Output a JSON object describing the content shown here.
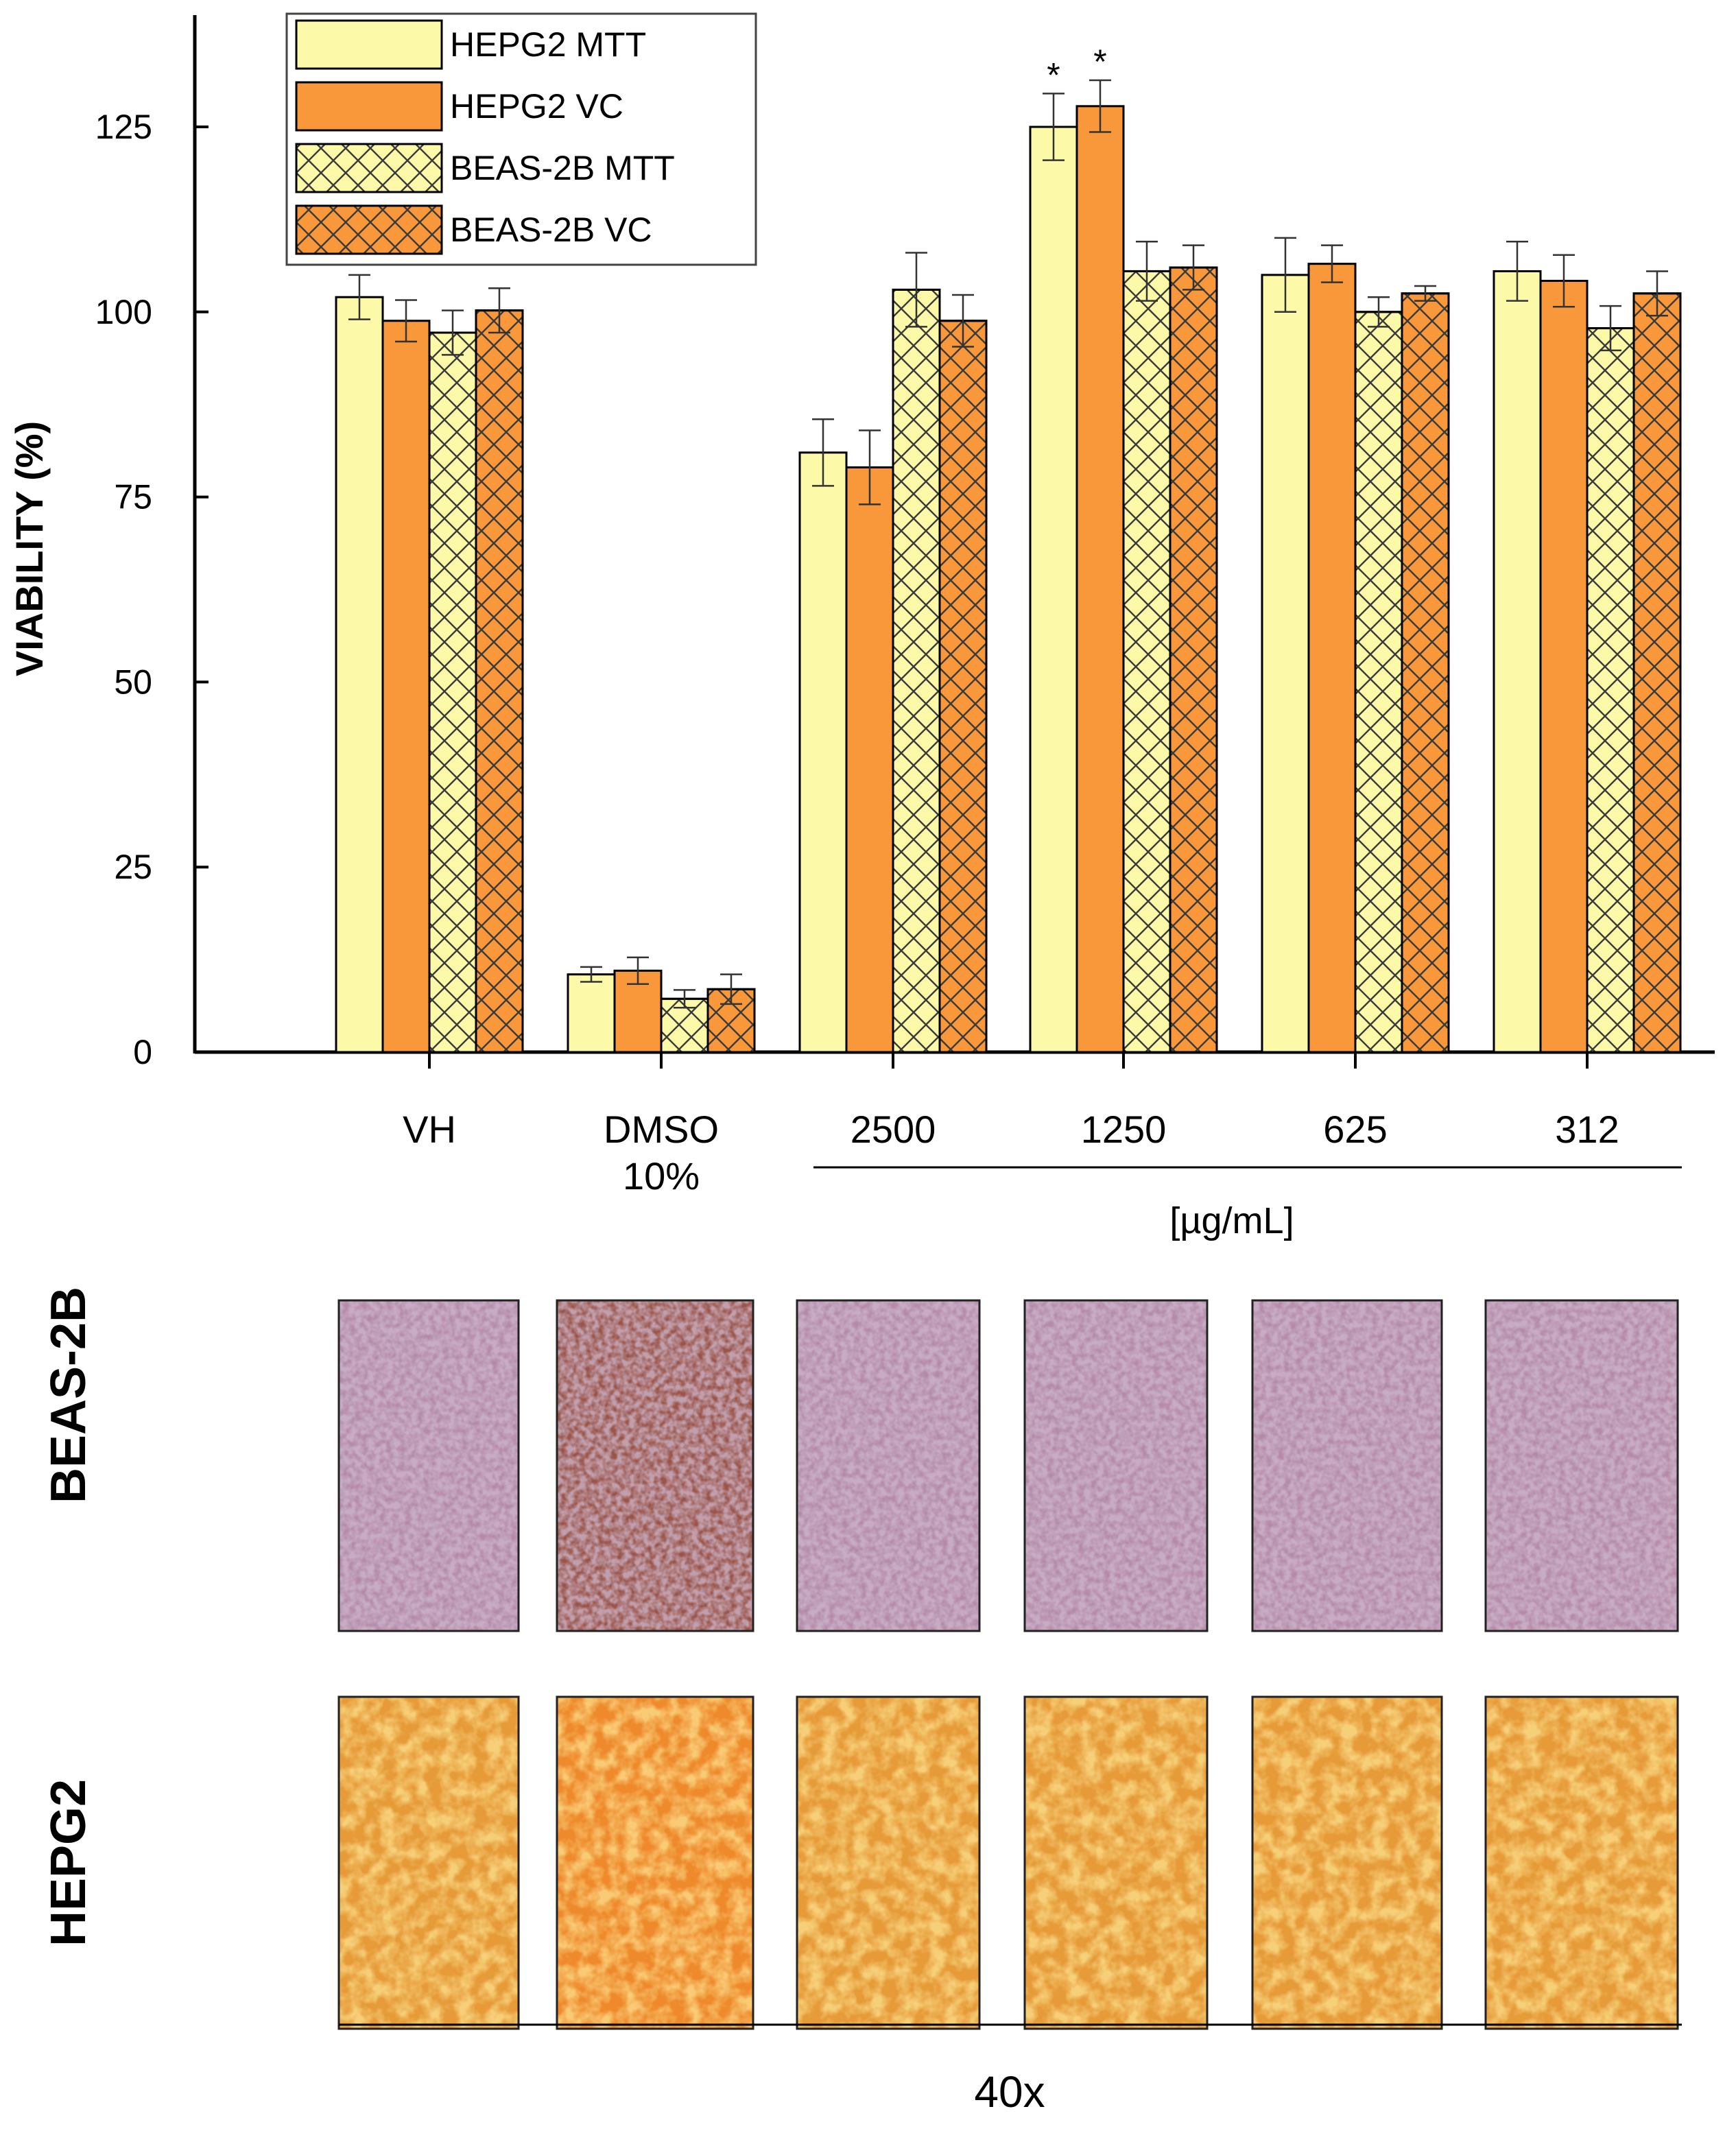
{
  "chart_data": {
    "type": "bar",
    "ylabel": "VIABILITY (%)",
    "ylim": [
      0,
      140
    ],
    "yticks": [
      0,
      25,
      50,
      75,
      100,
      125
    ],
    "categories": [
      [
        "VH"
      ],
      [
        "DMSO",
        "10%"
      ],
      [
        "2500"
      ],
      [
        "1250"
      ],
      [
        "625"
      ],
      [
        "312"
      ]
    ],
    "concentration_unit": "[µg/mL]",
    "series": [
      {
        "name": "HEPG2 MTT",
        "values": [
          102,
          10.5,
          81,
          125,
          105,
          105.5
        ],
        "errors": [
          3,
          1,
          4.5,
          4.5,
          5,
          4
        ]
      },
      {
        "name": "HEPG2 VC",
        "values": [
          98.8,
          11,
          79,
          127.8,
          106.5,
          104.2
        ],
        "errors": [
          2.8,
          1.8,
          5,
          3.5,
          2.5,
          3.5
        ]
      },
      {
        "name": "BEAS-2B MTT",
        "values": [
          97.2,
          7.2,
          103,
          105.5,
          100,
          97.8
        ],
        "errors": [
          3,
          1.2,
          5,
          4,
          2,
          3
        ]
      },
      {
        "name": "BEAS-2B VC",
        "values": [
          100.2,
          8.5,
          98.8,
          106,
          102.5,
          102.5
        ],
        "errors": [
          3,
          2,
          3.5,
          3,
          1,
          3
        ]
      }
    ],
    "significance": [
      {
        "category": "1250",
        "series": "HEPG2 MTT",
        "mark": "*"
      },
      {
        "category": "1250",
        "series": "HEPG2 VC",
        "mark": "*"
      }
    ],
    "legend_position": "top-left"
  },
  "colors": {
    "mtt": "#fcfaa8",
    "vc": "#f8983a",
    "hatch": "#3a3a3a",
    "axis": "#000000"
  },
  "micrographs": {
    "rows": [
      {
        "label": "BEAS-2B",
        "tone": "purple"
      },
      {
        "label": "HEPG2",
        "tone": "orange"
      }
    ],
    "magnification": "40x"
  }
}
